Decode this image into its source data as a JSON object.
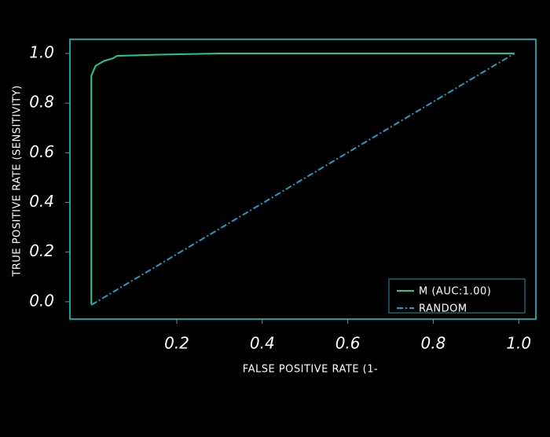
{
  "chart_data": {
    "type": "line",
    "x_label": "FALSE POSITIVE RATE (1-",
    "y_label": "TRUE POSITIVE RATE (SENSITIVITY)",
    "xlim": [
      -0.05,
      1.04
    ],
    "ylim": [
      -0.07,
      1.057
    ],
    "xticks": [
      0.2,
      0.4,
      0.6,
      0.8,
      {
        "value": 1,
        "label": "1.0"
      }
    ],
    "yticks": [
      {
        "value": 0,
        "label": "0.0"
      },
      0.2,
      0.4,
      0.6,
      0.8,
      {
        "value": 1,
        "label": "1.0"
      }
    ],
    "legend": "lower right",
    "series": [
      {
        "name": "M (AUC:1.00)",
        "color": "#1fc98a",
        "linestyle": "solid",
        "x": [
          0,
          0,
          0.005,
          0.01,
          0.02,
          0.03,
          0.05,
          0.06,
          0.15,
          0.3,
          0.99
        ],
        "values": [
          -0.01,
          0.91,
          0.93,
          0.95,
          0.96,
          0.97,
          0.98,
          0.99,
          0.995,
          1.0,
          1.0
        ]
      },
      {
        "name": "RANDOM",
        "color": "#1a9ec9",
        "linestyle": "dashdot",
        "x": [
          0,
          0.99
        ],
        "values": [
          -0.013,
          1.0
        ]
      }
    ]
  }
}
